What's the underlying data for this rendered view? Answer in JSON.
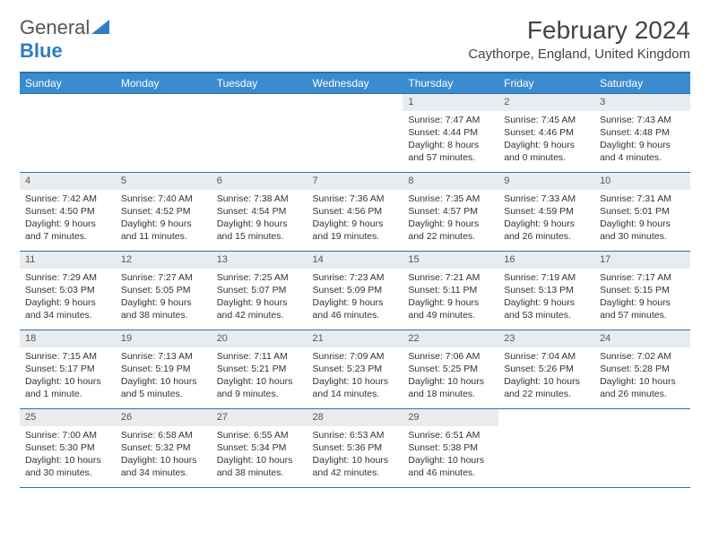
{
  "brand": {
    "part1": "General",
    "part2": "Blue"
  },
  "title": "February 2024",
  "location": "Caythorpe, England, United Kingdom",
  "colors": {
    "header_bg": "#3a8bd0",
    "header_border": "#2f6fa8",
    "daynum_bg": "#e9ecef",
    "text": "#333333",
    "brand_gray": "#555555",
    "brand_blue": "#2f7dc4"
  },
  "weekdays": [
    "Sunday",
    "Monday",
    "Tuesday",
    "Wednesday",
    "Thursday",
    "Friday",
    "Saturday"
  ],
  "first_weekday_index": 4,
  "days": [
    {
      "n": "1",
      "sunrise": "Sunrise: 7:47 AM",
      "sunset": "Sunset: 4:44 PM",
      "daylight": "Daylight: 8 hours and 57 minutes."
    },
    {
      "n": "2",
      "sunrise": "Sunrise: 7:45 AM",
      "sunset": "Sunset: 4:46 PM",
      "daylight": "Daylight: 9 hours and 0 minutes."
    },
    {
      "n": "3",
      "sunrise": "Sunrise: 7:43 AM",
      "sunset": "Sunset: 4:48 PM",
      "daylight": "Daylight: 9 hours and 4 minutes."
    },
    {
      "n": "4",
      "sunrise": "Sunrise: 7:42 AM",
      "sunset": "Sunset: 4:50 PM",
      "daylight": "Daylight: 9 hours and 7 minutes."
    },
    {
      "n": "5",
      "sunrise": "Sunrise: 7:40 AM",
      "sunset": "Sunset: 4:52 PM",
      "daylight": "Daylight: 9 hours and 11 minutes."
    },
    {
      "n": "6",
      "sunrise": "Sunrise: 7:38 AM",
      "sunset": "Sunset: 4:54 PM",
      "daylight": "Daylight: 9 hours and 15 minutes."
    },
    {
      "n": "7",
      "sunrise": "Sunrise: 7:36 AM",
      "sunset": "Sunset: 4:56 PM",
      "daylight": "Daylight: 9 hours and 19 minutes."
    },
    {
      "n": "8",
      "sunrise": "Sunrise: 7:35 AM",
      "sunset": "Sunset: 4:57 PM",
      "daylight": "Daylight: 9 hours and 22 minutes."
    },
    {
      "n": "9",
      "sunrise": "Sunrise: 7:33 AM",
      "sunset": "Sunset: 4:59 PM",
      "daylight": "Daylight: 9 hours and 26 minutes."
    },
    {
      "n": "10",
      "sunrise": "Sunrise: 7:31 AM",
      "sunset": "Sunset: 5:01 PM",
      "daylight": "Daylight: 9 hours and 30 minutes."
    },
    {
      "n": "11",
      "sunrise": "Sunrise: 7:29 AM",
      "sunset": "Sunset: 5:03 PM",
      "daylight": "Daylight: 9 hours and 34 minutes."
    },
    {
      "n": "12",
      "sunrise": "Sunrise: 7:27 AM",
      "sunset": "Sunset: 5:05 PM",
      "daylight": "Daylight: 9 hours and 38 minutes."
    },
    {
      "n": "13",
      "sunrise": "Sunrise: 7:25 AM",
      "sunset": "Sunset: 5:07 PM",
      "daylight": "Daylight: 9 hours and 42 minutes."
    },
    {
      "n": "14",
      "sunrise": "Sunrise: 7:23 AM",
      "sunset": "Sunset: 5:09 PM",
      "daylight": "Daylight: 9 hours and 46 minutes."
    },
    {
      "n": "15",
      "sunrise": "Sunrise: 7:21 AM",
      "sunset": "Sunset: 5:11 PM",
      "daylight": "Daylight: 9 hours and 49 minutes."
    },
    {
      "n": "16",
      "sunrise": "Sunrise: 7:19 AM",
      "sunset": "Sunset: 5:13 PM",
      "daylight": "Daylight: 9 hours and 53 minutes."
    },
    {
      "n": "17",
      "sunrise": "Sunrise: 7:17 AM",
      "sunset": "Sunset: 5:15 PM",
      "daylight": "Daylight: 9 hours and 57 minutes."
    },
    {
      "n": "18",
      "sunrise": "Sunrise: 7:15 AM",
      "sunset": "Sunset: 5:17 PM",
      "daylight": "Daylight: 10 hours and 1 minute."
    },
    {
      "n": "19",
      "sunrise": "Sunrise: 7:13 AM",
      "sunset": "Sunset: 5:19 PM",
      "daylight": "Daylight: 10 hours and 5 minutes."
    },
    {
      "n": "20",
      "sunrise": "Sunrise: 7:11 AM",
      "sunset": "Sunset: 5:21 PM",
      "daylight": "Daylight: 10 hours and 9 minutes."
    },
    {
      "n": "21",
      "sunrise": "Sunrise: 7:09 AM",
      "sunset": "Sunset: 5:23 PM",
      "daylight": "Daylight: 10 hours and 14 minutes."
    },
    {
      "n": "22",
      "sunrise": "Sunrise: 7:06 AM",
      "sunset": "Sunset: 5:25 PM",
      "daylight": "Daylight: 10 hours and 18 minutes."
    },
    {
      "n": "23",
      "sunrise": "Sunrise: 7:04 AM",
      "sunset": "Sunset: 5:26 PM",
      "daylight": "Daylight: 10 hours and 22 minutes."
    },
    {
      "n": "24",
      "sunrise": "Sunrise: 7:02 AM",
      "sunset": "Sunset: 5:28 PM",
      "daylight": "Daylight: 10 hours and 26 minutes."
    },
    {
      "n": "25",
      "sunrise": "Sunrise: 7:00 AM",
      "sunset": "Sunset: 5:30 PM",
      "daylight": "Daylight: 10 hours and 30 minutes."
    },
    {
      "n": "26",
      "sunrise": "Sunrise: 6:58 AM",
      "sunset": "Sunset: 5:32 PM",
      "daylight": "Daylight: 10 hours and 34 minutes."
    },
    {
      "n": "27",
      "sunrise": "Sunrise: 6:55 AM",
      "sunset": "Sunset: 5:34 PM",
      "daylight": "Daylight: 10 hours and 38 minutes."
    },
    {
      "n": "28",
      "sunrise": "Sunrise: 6:53 AM",
      "sunset": "Sunset: 5:36 PM",
      "daylight": "Daylight: 10 hours and 42 minutes."
    },
    {
      "n": "29",
      "sunrise": "Sunrise: 6:51 AM",
      "sunset": "Sunset: 5:38 PM",
      "daylight": "Daylight: 10 hours and 46 minutes."
    }
  ]
}
